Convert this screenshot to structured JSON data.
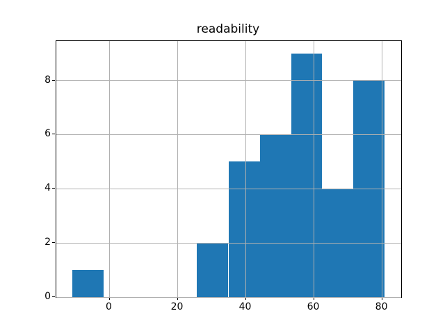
{
  "figure": {
    "background_color": "#ffffff",
    "text_color": "#000000"
  },
  "chart_data": {
    "type": "bar",
    "subtype": "histogram",
    "title": "readability",
    "xlabel": "",
    "ylabel": "",
    "bin_edges": [
      -11.0,
      -1.8,
      7.4,
      16.5,
      25.7,
      34.9,
      44.1,
      53.3,
      62.4,
      71.6,
      80.8
    ],
    "counts": [
      1,
      0,
      0,
      0,
      2,
      5,
      6,
      9,
      4,
      8
    ],
    "x_ticks": [
      0,
      20,
      40,
      60,
      80
    ],
    "y_ticks": [
      0,
      2,
      4,
      6,
      8
    ],
    "xlim": [
      -15.6,
      85.6
    ],
    "ylim": [
      0,
      9.45
    ],
    "grid": true,
    "legend": "none",
    "bar_color": "#1f77b4",
    "grid_color": "#b0b0b0",
    "spine_color": "#000000"
  }
}
